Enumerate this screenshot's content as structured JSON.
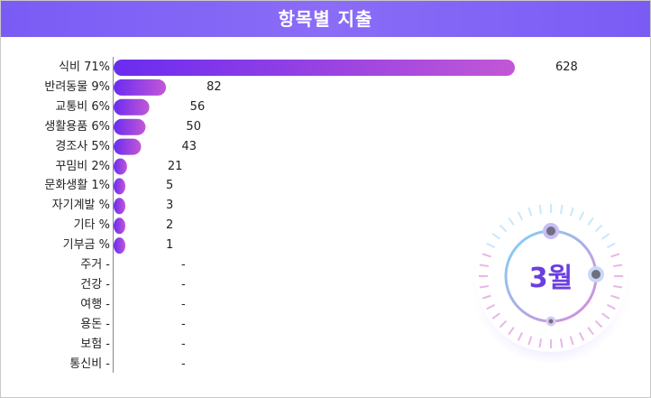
{
  "title": "항목별 지출",
  "month_badge": {
    "label": "3월",
    "colors": {
      "text": "#6a3fe0",
      "ring": "#c7b6f7"
    }
  },
  "colors": {
    "bar_start": "#6a2cf0",
    "bar_end": "#c257d6",
    "header": "#7a5cf5"
  },
  "chart_data": {
    "type": "bar",
    "orientation": "horizontal",
    "title": "항목별 지출",
    "categories": [
      "식비",
      "반려동물",
      "교통비",
      "생활용품",
      "경조사",
      "꾸밈비",
      "문화생활",
      "자기계발",
      "기타",
      "기부금",
      "주거",
      "건강",
      "여행",
      "용돈",
      "보험",
      "통신비"
    ],
    "percent_labels": [
      "71%",
      "9%",
      "6%",
      "6%",
      "5%",
      "2%",
      "1%",
      "%",
      "%",
      "%",
      "-",
      "-",
      "-",
      "-",
      "-",
      "-"
    ],
    "values": [
      628,
      82,
      56,
      50,
      43,
      21,
      5,
      3,
      2,
      1,
      null,
      null,
      null,
      null,
      null,
      null
    ],
    "value_labels": [
      "628",
      "82",
      "56",
      "50",
      "43",
      "21",
      "5",
      "3",
      "2",
      "1",
      "-",
      "-",
      "-",
      "-",
      "-",
      "-"
    ],
    "xlim": [
      0,
      628
    ]
  }
}
